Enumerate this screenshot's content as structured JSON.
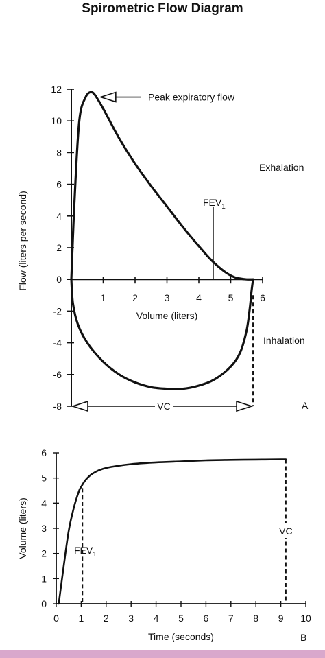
{
  "title": "Spirometric Flow Diagram",
  "colors": {
    "ink": "#111111",
    "footer_bar": "#d9a8cc"
  },
  "chart_data": [
    {
      "panel": "A",
      "type": "line",
      "xlabel": "Volume (liters)",
      "ylabel": "Flow (liters per second)",
      "xlim": [
        0,
        6
      ],
      "ylim": [
        -8,
        12
      ],
      "x_ticks": [
        1,
        2,
        3,
        4,
        5,
        6
      ],
      "y_ticks": [
        12,
        10,
        8,
        6,
        4,
        2,
        0,
        -2,
        -4,
        -6,
        -8
      ],
      "grid": false,
      "series": [
        {
          "name": "Exhalation",
          "x": [
            0,
            0.1,
            0.25,
            0.45,
            0.65,
            0.85,
            1.1,
            1.5,
            2.0,
            2.5,
            3.0,
            3.5,
            4.0,
            4.4,
            4.8,
            5.1,
            5.3,
            5.5,
            5.7
          ],
          "y": [
            0,
            5.0,
            10.0,
            11.5,
            11.8,
            11.3,
            10.4,
            8.9,
            7.3,
            5.9,
            4.6,
            3.3,
            2.1,
            1.2,
            0.5,
            0.15,
            0.05,
            0,
            0
          ]
        },
        {
          "name": "Inhalation",
          "x": [
            0,
            0.05,
            0.2,
            0.5,
            1.0,
            1.5,
            2.0,
            2.5,
            3.0,
            3.5,
            4.0,
            4.5,
            5.0,
            5.3,
            5.5,
            5.6,
            5.65,
            5.7
          ],
          "y": [
            0,
            -1.5,
            -2.8,
            -4.0,
            -5.2,
            -6.0,
            -6.5,
            -6.8,
            -6.9,
            -6.9,
            -6.7,
            -6.3,
            -5.5,
            -4.6,
            -3.2,
            -1.8,
            -0.8,
            0
          ]
        }
      ],
      "annotations": {
        "peak_flow": "Peak expiratory flow",
        "exhalation": "Exhalation",
        "inhalation": "Inhalation",
        "fev1_main": "FEV",
        "fev1_sub": "1",
        "fev1_x": 4.45,
        "vc": "VC",
        "vc_range": [
          0,
          5.7
        ],
        "panel_letter": "A"
      }
    },
    {
      "panel": "B",
      "type": "line",
      "xlabel": "Time (seconds)",
      "ylabel": "Volume (liters)",
      "xlim": [
        0,
        10
      ],
      "ylim": [
        0,
        6
      ],
      "x_ticks": [
        0,
        1,
        2,
        3,
        4,
        5,
        6,
        7,
        8,
        9,
        10
      ],
      "y_ticks": [
        6,
        5,
        4,
        3,
        2,
        1,
        0
      ],
      "grid": false,
      "series": [
        {
          "name": "Volume",
          "x": [
            0.1,
            0.3,
            0.5,
            0.7,
            0.9,
            1.0,
            1.2,
            1.5,
            2.0,
            3.0,
            4.0,
            5.0,
            6.0,
            7.0,
            8.0,
            9.0,
            9.2
          ],
          "y": [
            0,
            1.5,
            2.9,
            3.8,
            4.45,
            4.65,
            4.95,
            5.2,
            5.4,
            5.55,
            5.62,
            5.66,
            5.7,
            5.72,
            5.73,
            5.74,
            5.74
          ]
        }
      ],
      "annotations": {
        "fev1_main": "FEV",
        "fev1_sub": "1",
        "fev1_x": 1.05,
        "fev1_y": 4.6,
        "vc": "VC",
        "vc_x": 9.2,
        "vc_y": 5.74,
        "panel_letter": "B"
      }
    }
  ]
}
